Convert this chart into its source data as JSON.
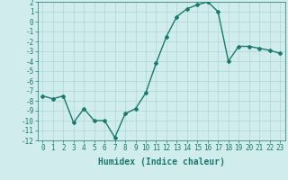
{
  "x": [
    0,
    1,
    2,
    3,
    4,
    5,
    6,
    7,
    8,
    9,
    10,
    11,
    12,
    13,
    14,
    15,
    16,
    17,
    18,
    19,
    20,
    21,
    22,
    23
  ],
  "y": [
    -7.5,
    -7.8,
    -7.5,
    -10.2,
    -8.8,
    -10.0,
    -10.0,
    -11.7,
    -9.3,
    -8.8,
    -7.2,
    -4.2,
    -1.5,
    0.5,
    1.3,
    1.7,
    2.0,
    1.0,
    -4.0,
    -2.5,
    -2.5,
    -2.7,
    -2.9,
    -3.2
  ],
  "line_color": "#1a7a6e",
  "marker": "D",
  "marker_size": 2,
  "bg_color": "#d0ecec",
  "grid_color": "#aed6d6",
  "xlabel": "Humidex (Indice chaleur)",
  "ylim": [
    -12,
    2
  ],
  "xlim": [
    -0.5,
    23.5
  ],
  "yticks": [
    2,
    1,
    0,
    -1,
    -2,
    -3,
    -4,
    -5,
    -6,
    -7,
    -8,
    -9,
    -10,
    -11,
    -12
  ],
  "xticks": [
    0,
    1,
    2,
    3,
    4,
    5,
    6,
    7,
    8,
    9,
    10,
    11,
    12,
    13,
    14,
    15,
    16,
    17,
    18,
    19,
    20,
    21,
    22,
    23
  ],
  "tick_fontsize": 5.5,
  "xlabel_fontsize": 7,
  "line_width": 1.0
}
